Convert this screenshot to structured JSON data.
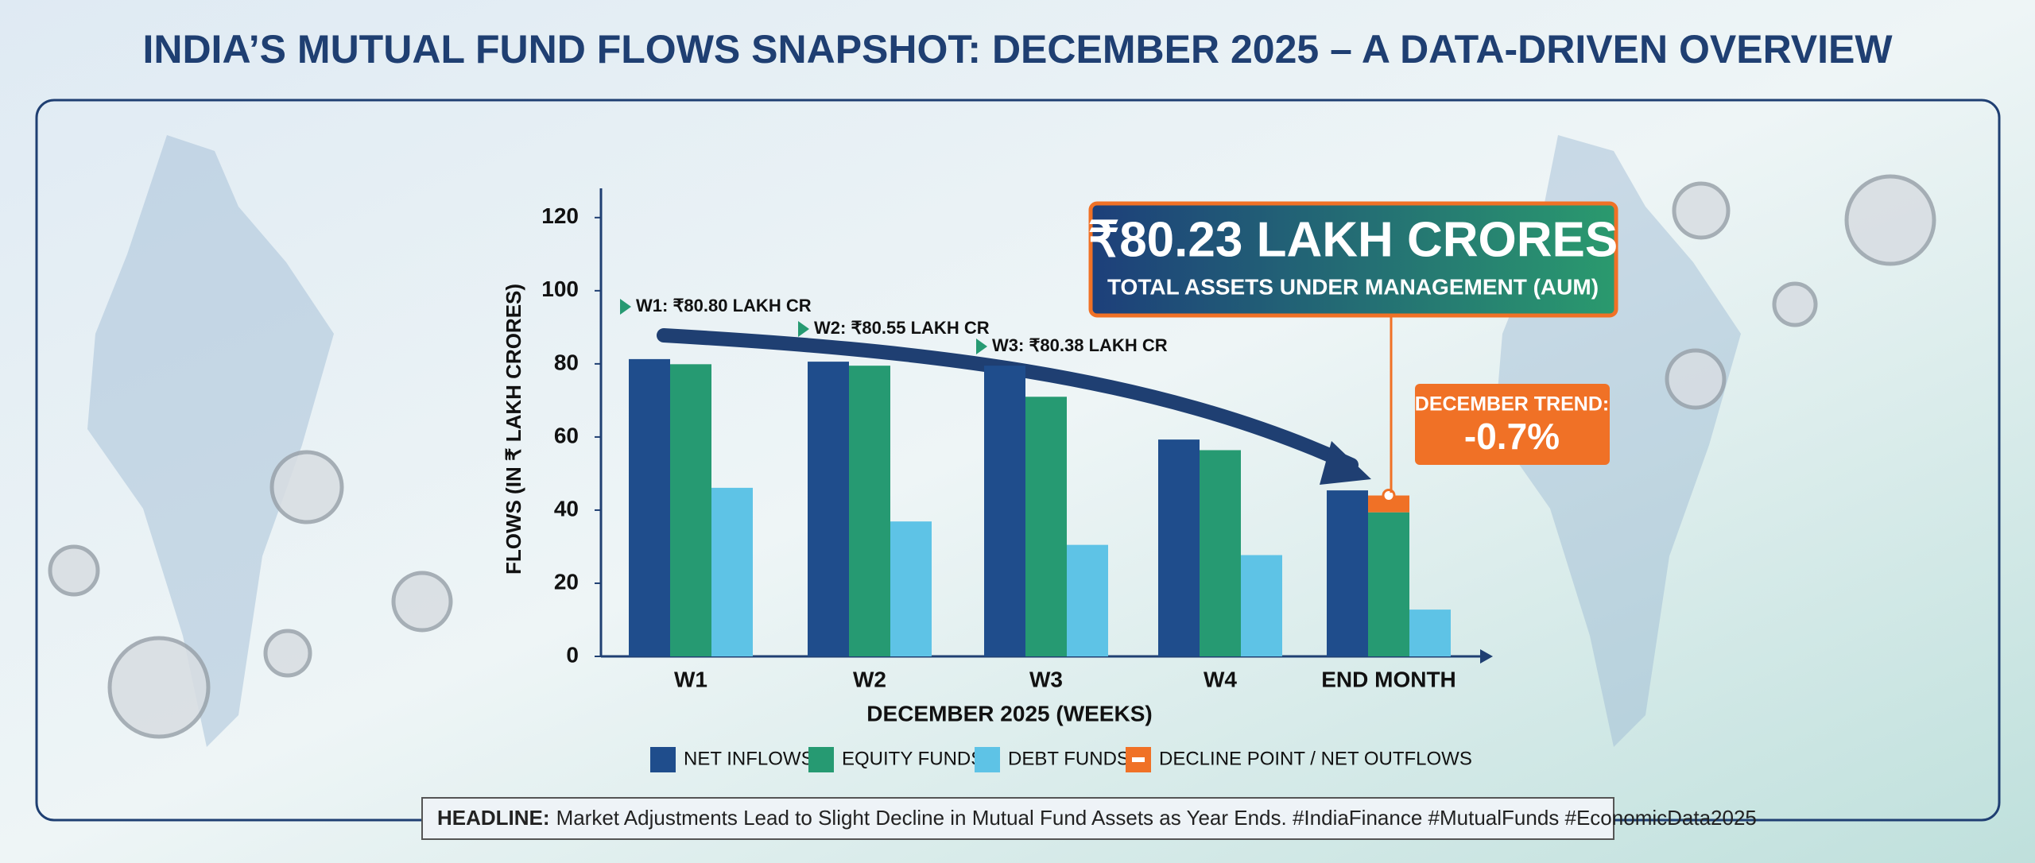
{
  "chart_data": {
    "type": "bar",
    "title": "INDIA’S MUTUAL FUND FLOWS SNAPSHOT: DECEMBER 2025 – A DATA-DRIVEN OVERVIEW",
    "x_label": "DECEMBER 2025 (WEEKS)",
    "y_label": "FLOWS (IN ₹ LAKH CRORES)",
    "categories": [
      "W1",
      "W2",
      "W3",
      "W4",
      "END MONTH"
    ],
    "series": [
      {
        "name": "NET INFLOWS",
        "color": "#1f4d8c",
        "values": [
          81.3,
          80.6,
          79.5,
          59.3,
          45.4
        ]
      },
      {
        "name": "EQUITY FUNDS",
        "color": "#269a72",
        "values": [
          79.9,
          79.5,
          71,
          56.4,
          39.4
        ]
      },
      {
        "name": "DEBT FUNDS",
        "color": "#5ec3e6",
        "values": [
          46.1,
          36.9,
          30.5,
          27.7,
          12.8
        ]
      },
      {
        "name": "DECLINE POINT / NET OUTFLOWS",
        "color": "#f07126",
        "values": [
          null,
          null,
          null,
          null,
          4.6
        ],
        "stack_on": 1
      }
    ],
    "ylim": [
      0,
      128
    ],
    "yticks": [
      0,
      20,
      40,
      60,
      80,
      100,
      120
    ],
    "annotations": [
      "W1: ₹80.80 LAKH CR",
      "W2: ₹80.55 LAKH CR",
      "W3: ₹80.38 LAKH CR"
    ],
    "aum_value": "₹80.23 LAKH CRORES",
    "aum_label": "TOTAL ASSETS UNDER MANAGEMENT (AUM)",
    "trend_label": "DECEMBER TREND:",
    "trend_value": "-0.7%",
    "headline_label": "HEADLINE:",
    "headline_text": "Market Adjustments Lead to Slight Decline in Mutual Fund Assets as Year Ends. #IndiaFinance #MutualFunds #EconomicData2025"
  }
}
